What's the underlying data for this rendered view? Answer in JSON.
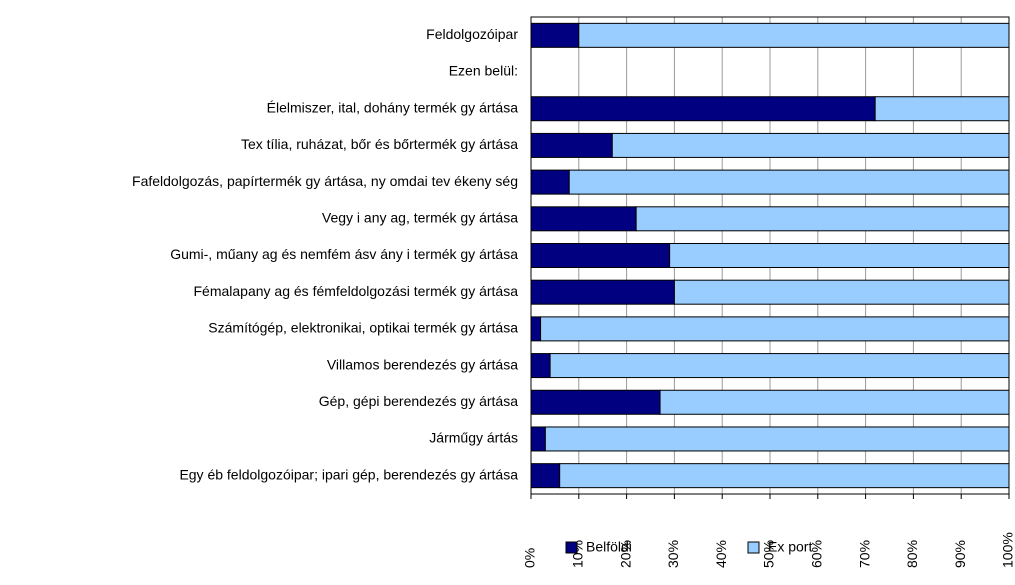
{
  "chart_data": {
    "type": "stacked-bar-horizontal",
    "categories": [
      "Feldolgozóipar",
      "Ezen belül:",
      "Élelmiszer, ital, dohány termék gy ártása",
      "Tex tília, ruházat, bőr és bőrtermék gy ártása",
      "Fafeldolgozás, papírtermék gy ártása, ny omdai tev ékeny ség",
      "Vegy i any ag, termék gy ártása",
      "Gumi-, műany ag és nemfém ásv ány i termék gy ártása",
      "Fémalapany ag és fémfeldolgozási termék gy ártása",
      "Számítógép, elektronikai, optikai termék gy ártása",
      "Villamos berendezés gy ártása",
      "Gép, gépi berendezés gy ártása",
      "Járműgy ártás",
      "Egy éb feldolgozóipar; ipari gép, berendezés gy ártása"
    ],
    "series": [
      {
        "name": "Belföldi",
        "color": "#000080",
        "values": [
          10,
          null,
          72,
          17,
          8,
          22,
          29,
          30,
          2,
          4,
          27,
          3,
          6
        ]
      },
      {
        "name": "Ex port",
        "color": "#99ccff",
        "values": [
          90,
          null,
          28,
          83,
          92,
          78,
          71,
          70,
          98,
          96,
          73,
          97,
          94
        ]
      }
    ],
    "xlim": [
      0,
      100
    ],
    "xticks": [
      {
        "value": 0,
        "label": "0%"
      },
      {
        "value": 10,
        "label": "10%"
      },
      {
        "value": 20,
        "label": "20%"
      },
      {
        "value": 30,
        "label": "30%"
      },
      {
        "value": 40,
        "label": "40%"
      },
      {
        "value": 50,
        "label": "50%"
      },
      {
        "value": 60,
        "label": "60%"
      },
      {
        "value": 70,
        "label": "70%"
      },
      {
        "value": 80,
        "label": "80%"
      },
      {
        "value": 90,
        "label": "90%"
      },
      {
        "value": 100,
        "label": "100%"
      }
    ],
    "grid": true,
    "legend": "bottom"
  }
}
